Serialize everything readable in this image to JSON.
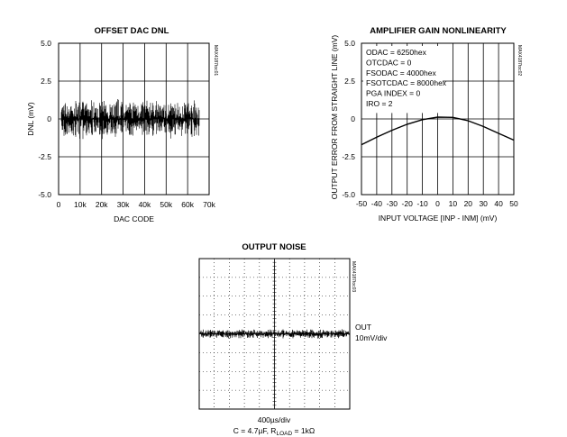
{
  "chart_data": [
    {
      "id": "dnl",
      "type": "line",
      "title": "OFFSET DAC DNL",
      "xlabel": "DAC CODE",
      "ylabel": "DNL (mV)",
      "xlim": [
        0,
        70000
      ],
      "ylim": [
        -5.0,
        5.0
      ],
      "x_ticks": [
        0,
        10000,
        20000,
        30000,
        40000,
        50000,
        60000,
        70000
      ],
      "x_tick_labels": [
        "0",
        "10k",
        "20k",
        "30k",
        "40k",
        "50k",
        "60k",
        "70k"
      ],
      "y_ticks": [
        5.0,
        2.5,
        0,
        -2.5,
        -5.0
      ],
      "y_tick_labels": [
        "5.0",
        "2.5",
        "0",
        "-2.5",
        "-5.0"
      ],
      "grid": true,
      "series": [
        {
          "values": {
            "x_range": [
              0,
              65535
            ],
            "center": 0,
            "amplitude": 1.4,
            "kind": "noise band"
          }
        }
      ],
      "watermark": "MAX4187toc01"
    },
    {
      "id": "gain",
      "type": "line",
      "title": "AMPLIFIER GAIN NONLINEARITY",
      "xlabel": "INPUT VOLTAGE [INP - INM] (mV)",
      "ylabel": "OUTPUT ERROR FROM STRAIGHT LINE (mV)",
      "xlim": [
        -50,
        50
      ],
      "ylim": [
        -5.0,
        5.0
      ],
      "x_ticks": [
        -50,
        -40,
        -30,
        -20,
        -10,
        0,
        10,
        20,
        30,
        40,
        50
      ],
      "x_tick_labels": [
        "-50",
        "-40",
        "-30",
        "-20",
        "-10",
        "0",
        "10",
        "20",
        "30",
        "40",
        "50"
      ],
      "y_ticks": [
        5.0,
        2.5,
        0,
        -2.5,
        -5.0
      ],
      "y_tick_labels": [
        "5.0",
        "2.5",
        "0",
        "-2.5",
        "-5.0"
      ],
      "grid": true,
      "series": [
        {
          "x": [
            -50,
            -40,
            -30,
            -20,
            -10,
            0,
            10,
            20,
            30,
            40,
            50
          ],
          "values": [
            -1.7,
            -1.2,
            -0.75,
            -0.35,
            -0.05,
            0.12,
            0.1,
            -0.12,
            -0.5,
            -0.95,
            -1.4
          ]
        }
      ],
      "annotations": [
        "ODAC = 6250hex",
        "OTCDAC = 0",
        "FSODAC = 4000hex",
        "FSOTCDAC = 8000hex",
        "PGA INDEX = 0",
        "IRO = 2"
      ],
      "watermark": "MAX4187toc02"
    },
    {
      "id": "noise",
      "type": "line",
      "title": "OUTPUT NOISE",
      "x_divisions": 10,
      "y_divisions": 8,
      "trace_level_div": 0,
      "trace_amplitude_div": 0.15,
      "trace_label_1": "OUT",
      "trace_label_2": "10mV/div",
      "xlabel": "400µs/div",
      "conditions_prefix": "C = 4.7µF, R",
      "conditions_sub": "LOAD",
      "conditions_suffix": " = 1kΩ",
      "watermark": "MAX4187toc03"
    }
  ]
}
